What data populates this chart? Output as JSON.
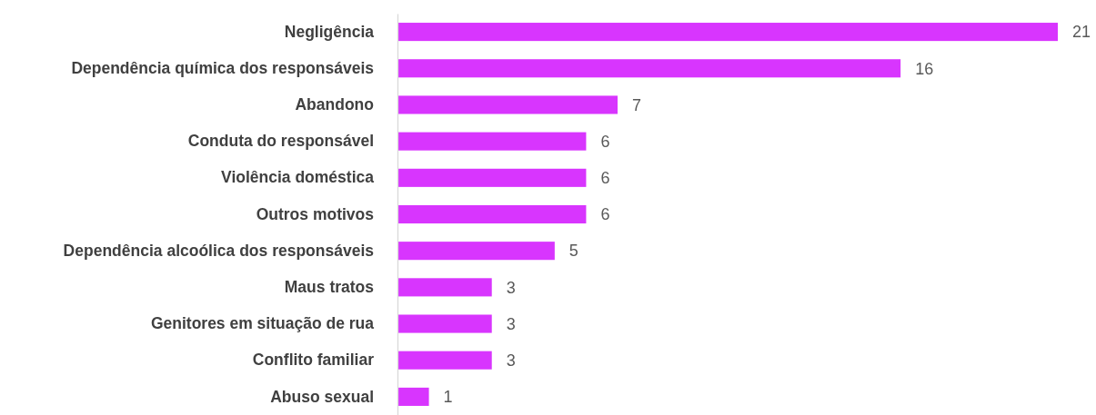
{
  "chart_data": {
    "type": "bar",
    "orientation": "horizontal",
    "data_labels": true,
    "color": "#d835fe",
    "categories": [
      "Negligência",
      "Dependência química dos responsáveis",
      "Abandono",
      "Conduta do responsável",
      "Violência doméstica",
      "Outros motivos",
      "Dependência alcoólica dos responsáveis",
      "Maus tratos",
      "Genitores em situação de rua",
      "Conflito familiar",
      "Abuso sexual"
    ],
    "values": [
      21,
      16,
      7,
      6,
      6,
      6,
      5,
      3,
      3,
      3,
      1
    ]
  }
}
